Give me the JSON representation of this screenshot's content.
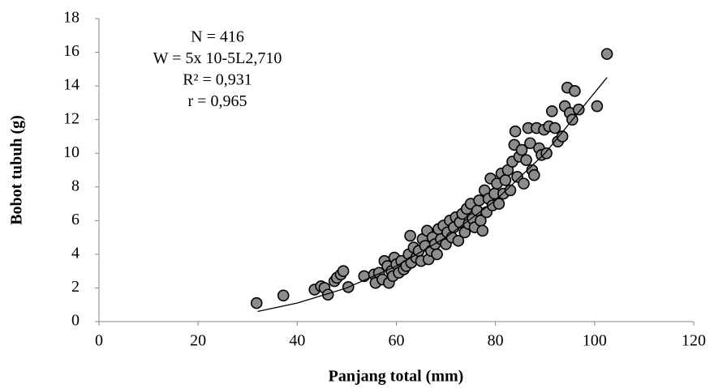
{
  "chart_data": {
    "type": "scatter",
    "x_label": "Panjang total (mm)",
    "y_label": "Bobot tubuh (g)",
    "annotations": [
      "N = 416",
      "W = 5x 10-5L2,710",
      "R² = 0,931",
      "r = 0,965"
    ],
    "xlim": [
      0,
      120
    ],
    "xticks": [
      0,
      20,
      40,
      60,
      80,
      100,
      120
    ],
    "ylim": [
      0,
      18
    ],
    "yticks": [
      0,
      2,
      4,
      6,
      8,
      10,
      12,
      14,
      16,
      18
    ],
    "grid": false,
    "color": "#8c8c8c",
    "x": [
      31.8,
      37.2,
      43.5,
      44.8,
      45.5,
      46.2,
      47.5,
      48,
      48.8,
      49.3,
      50.3,
      53.5,
      55.5,
      55.8,
      56.5,
      57.2,
      57.6,
      58.2,
      58.5,
      59,
      59.3,
      59.6,
      60,
      60.5,
      61,
      61.5,
      62,
      62.5,
      62.8,
      63,
      63.5,
      64,
      64.5,
      65,
      65.3,
      65.8,
      66.2,
      66.5,
      67,
      67.3,
      67.8,
      68.2,
      68.5,
      69,
      69.5,
      70,
      70.3,
      70.8,
      71.2,
      71.6,
      72,
      72.5,
      72.8,
      73.3,
      73.8,
      74.2,
      74.6,
      75,
      75.4,
      75.8,
      76.3,
      76.7,
      77,
      77.4,
      77.8,
      78.2,
      78.6,
      79,
      79.4,
      79.8,
      80.3,
      80.7,
      81.2,
      81.6,
      82,
      82.5,
      83,
      83.4,
      83.8,
      84,
      84.4,
      84.8,
      85.3,
      85.7,
      86.2,
      86.6,
      87,
      87.4,
      87.8,
      88.3,
      88.8,
      89.3,
      89.8,
      90.3,
      90.8,
      91.4,
      92,
      92.6,
      93.5,
      94,
      94.5,
      95,
      95.5,
      96,
      96.8,
      100.5,
      102.5
    ],
    "values": [
      1.1,
      1.55,
      1.9,
      2.1,
      2.0,
      1.6,
      2.4,
      2.6,
      2.8,
      3.0,
      2.05,
      2.7,
      2.8,
      2.3,
      2.9,
      2.5,
      3.6,
      3.3,
      2.3,
      3.0,
      2.7,
      3.8,
      3.4,
      2.9,
      3.6,
      3.1,
      3.3,
      4.0,
      5.1,
      3.5,
      4.4,
      3.8,
      4.2,
      3.6,
      4.9,
      4.5,
      5.4,
      3.7,
      4.2,
      5.0,
      4.6,
      4.0,
      5.5,
      4.9,
      5.7,
      4.6,
      5.3,
      6.0,
      5.0,
      5.6,
      6.2,
      4.8,
      5.9,
      6.4,
      5.3,
      6.7,
      5.8,
      7.0,
      6.1,
      5.6,
      6.6,
      7.2,
      6.0,
      5.4,
      7.8,
      6.5,
      7.3,
      8.5,
      6.9,
      7.6,
      8.2,
      7.0,
      8.8,
      7.6,
      8.4,
      9.0,
      7.8,
      9.5,
      10.5,
      11.3,
      8.6,
      9.8,
      10.2,
      8.2,
      9.6,
      11.5,
      10.6,
      9.0,
      8.7,
      11.5,
      10.3,
      9.9,
      11.4,
      10.0,
      11.6,
      12.5,
      11.5,
      10.7,
      11.0,
      12.8,
      13.9,
      12.4,
      12.0,
      13.7,
      12.6,
      12.8,
      15.9
    ],
    "trendline": {
      "color": "#000000",
      "x": [
        32,
        40,
        50,
        60,
        70,
        80,
        90,
        102.5
      ],
      "values": [
        0.6,
        1.1,
        2.0,
        3.3,
        5.0,
        7.2,
        10.0,
        14.5
      ]
    }
  }
}
